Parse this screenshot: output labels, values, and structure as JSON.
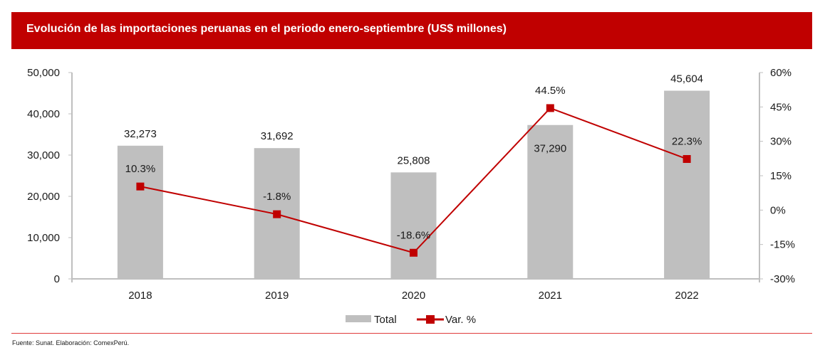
{
  "chart_data": {
    "type": "bar",
    "title": "Evolución de las importaciones peruanas en el periodo enero-septiembre (US$ millones)",
    "categories": [
      "2018",
      "2019",
      "2020",
      "2021",
      "2022"
    ],
    "series": [
      {
        "name": "Total",
        "type": "bar",
        "axis": "left",
        "values": [
          32273,
          31692,
          25808,
          37290,
          45604
        ],
        "labels": [
          "32,273",
          "31,692",
          "25,808",
          "37,290",
          "45,604"
        ],
        "color": "#bfbfbf"
      },
      {
        "name": "Var. %",
        "type": "line",
        "axis": "right",
        "values": [
          10.3,
          -1.8,
          -18.6,
          44.5,
          22.3
        ],
        "labels": [
          "10.3%",
          "-1.8%",
          "-18.6%",
          "44.5%",
          "22.3%"
        ],
        "color": "#c00000",
        "marker": "square"
      }
    ],
    "y_left": {
      "range": [
        0,
        50000
      ],
      "ticks": [
        0,
        10000,
        20000,
        30000,
        40000,
        50000
      ],
      "tick_labels": [
        "0",
        "10,000",
        "20,000",
        "30,000",
        "40,000",
        "50,000"
      ]
    },
    "y_right": {
      "range": [
        -30,
        60
      ],
      "ticks": [
        -30,
        -15,
        0,
        15,
        30,
        45,
        60
      ],
      "tick_labels": [
        "-30%",
        "-15%",
        "0%",
        "15%",
        "30%",
        "45%",
        "60%"
      ]
    },
    "xlabel": "",
    "ylabel": "",
    "grid": false,
    "legend": {
      "position": "bottom",
      "entries": [
        "Total",
        "Var. %"
      ]
    }
  },
  "footer": {
    "source": "Fuente: Sunat. Elaboración: ComexPerú."
  },
  "colors": {
    "header_bg": "#c00000",
    "bar": "#bfbfbf",
    "line": "#c00000",
    "axis": "#bfbfbf"
  }
}
